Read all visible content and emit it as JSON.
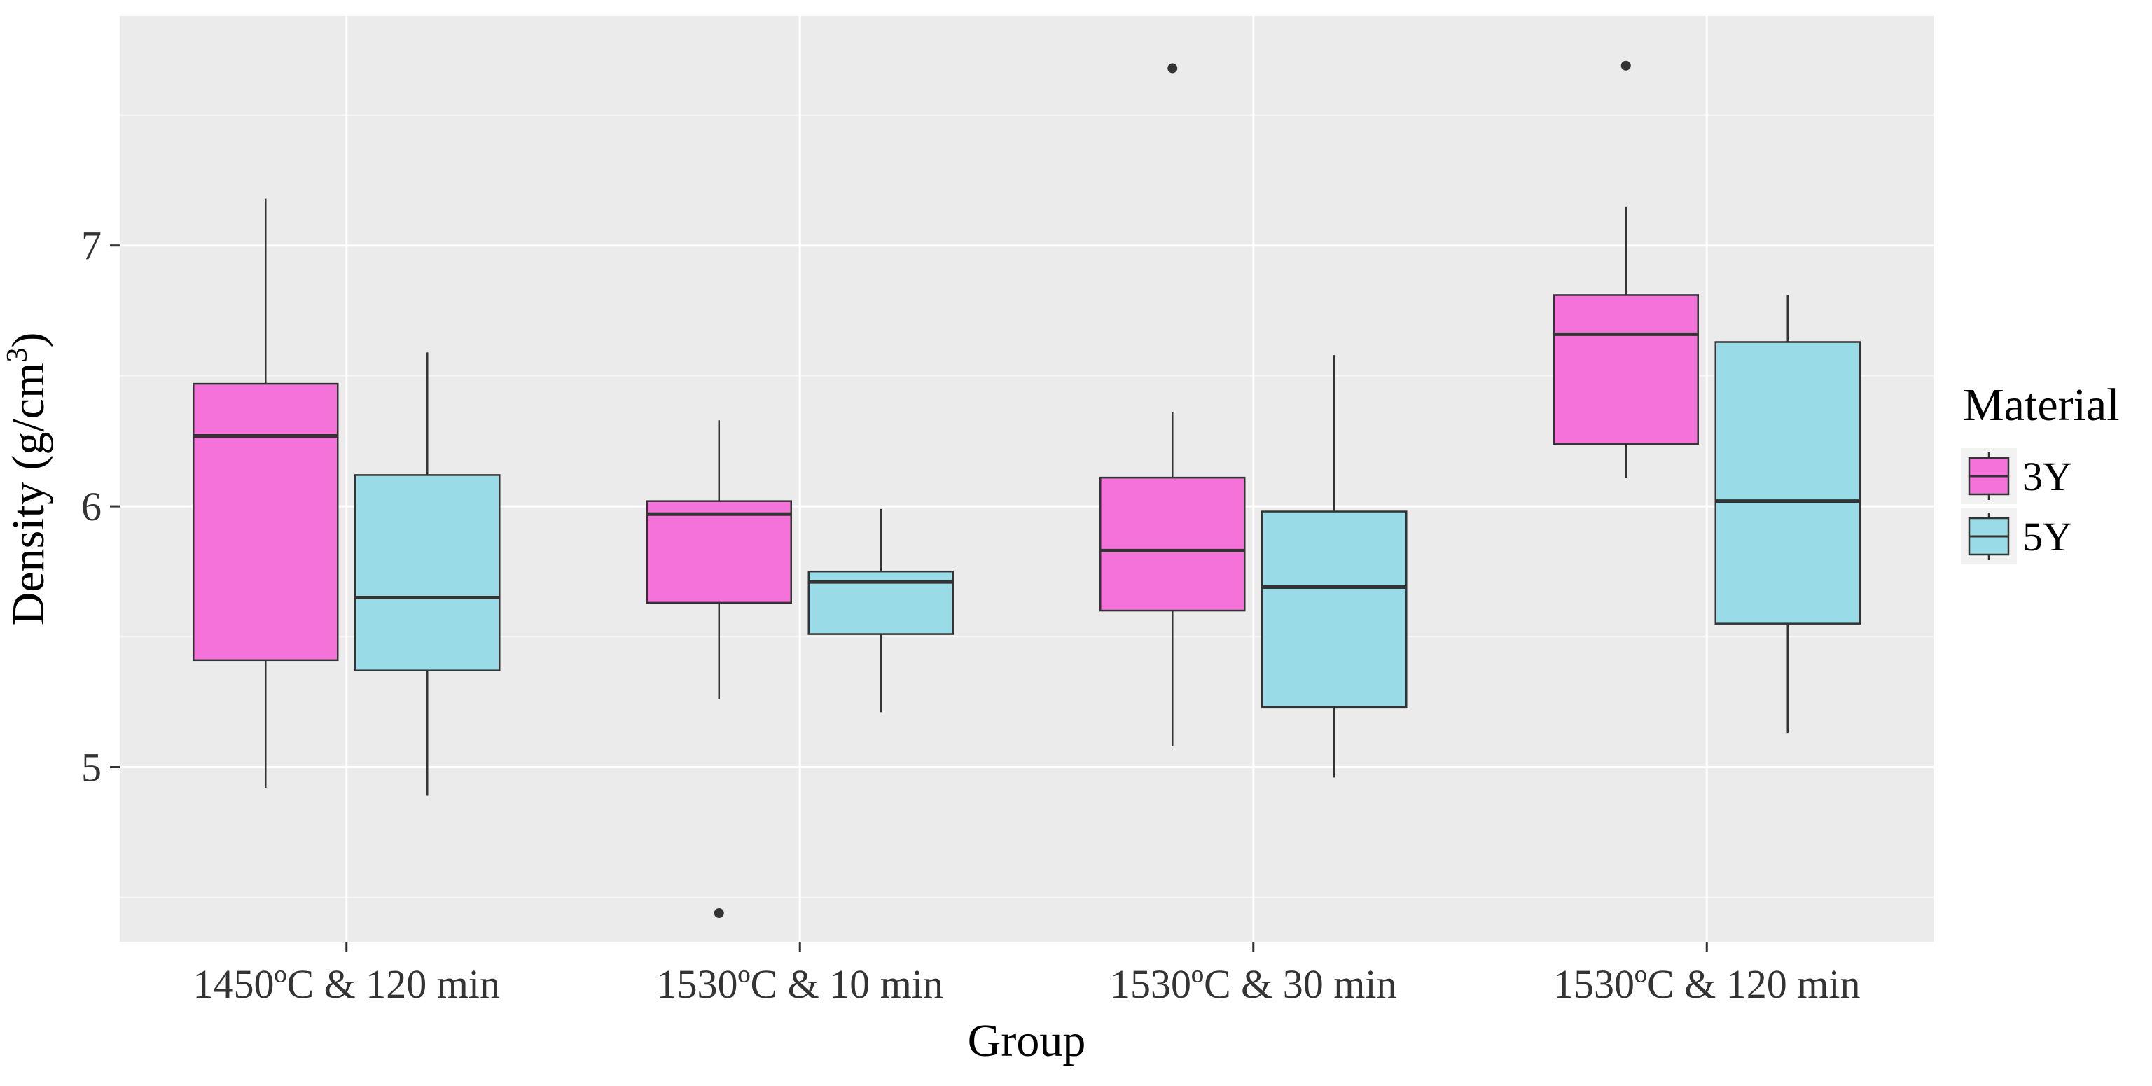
{
  "chart_data": {
    "type": "boxplot",
    "title": "",
    "xlabel": "Group",
    "ylabel_main": "Density (g/cm",
    "ylabel_sup": "3",
    "ylabel_close": ")",
    "ylim": [
      4.33,
      7.88
    ],
    "yticks": [
      5,
      6,
      7
    ],
    "ytick_labels": [
      "5",
      "6",
      "7"
    ],
    "categories": [
      "1450ºC & 120 min",
      "1530ºC & 10 min",
      "1530ºC & 30 min",
      "1530ºC & 120 min"
    ],
    "legend": {
      "title": "Material",
      "position": "right",
      "entries": [
        "3Y",
        "5Y"
      ]
    },
    "series": [
      {
        "name": "3Y",
        "color": "#F672DB",
        "boxes": [
          {
            "min": 4.92,
            "q1": 5.41,
            "median": 6.27,
            "q3": 6.47,
            "max": 7.18,
            "outliers": []
          },
          {
            "min": 5.26,
            "q1": 5.63,
            "median": 5.97,
            "q3": 6.02,
            "max": 6.33,
            "outliers": [
              4.44
            ]
          },
          {
            "min": 5.08,
            "q1": 5.6,
            "median": 5.83,
            "q3": 6.11,
            "max": 6.36,
            "outliers": [
              7.68
            ]
          },
          {
            "min": 6.11,
            "q1": 6.24,
            "median": 6.66,
            "q3": 6.81,
            "max": 7.15,
            "outliers": [
              7.69
            ]
          }
        ]
      },
      {
        "name": "5Y",
        "color": "#99DBE7",
        "boxes": [
          {
            "min": 4.89,
            "q1": 5.37,
            "median": 5.65,
            "q3": 6.12,
            "max": 6.59,
            "outliers": []
          },
          {
            "min": 5.21,
            "q1": 5.51,
            "median": 5.71,
            "q3": 5.75,
            "max": 5.99,
            "outliers": []
          },
          {
            "min": 4.96,
            "q1": 5.23,
            "median": 5.69,
            "q3": 5.98,
            "max": 6.58,
            "outliers": []
          },
          {
            "min": 5.13,
            "q1": 5.55,
            "median": 6.02,
            "q3": 6.63,
            "max": 6.81,
            "outliers": []
          }
        ]
      }
    ]
  }
}
